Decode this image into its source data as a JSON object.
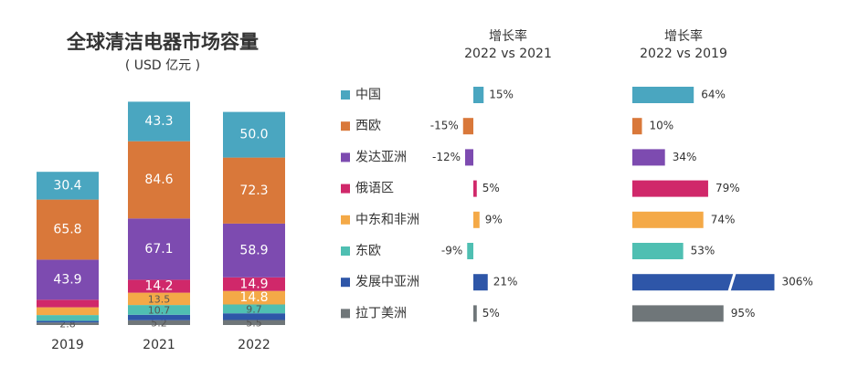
{
  "chart_data": [
    {
      "type": "stacked-bar",
      "title": "全球清洁电器市场容量",
      "subtitle": "( USD 亿元 )",
      "categories": [
        "2019",
        "2021",
        "2022"
      ],
      "series": [
        {
          "name": "中国",
          "color": "#4aa6c0",
          "values": [
            30.4,
            43.3,
            50.0
          ],
          "value_labels": [
            "30.4",
            "43.3",
            "50.0"
          ]
        },
        {
          "name": "西欧",
          "color": "#d9783a",
          "values": [
            65.8,
            84.6,
            72.3
          ],
          "value_labels": [
            "65.8",
            "84.6",
            "72.3"
          ]
        },
        {
          "name": "发达亚洲",
          "color": "#7d4bb0",
          "values": [
            43.9,
            67.1,
            58.9
          ],
          "value_labels": [
            "43.9",
            "67.1",
            "58.9"
          ]
        },
        {
          "name": "俄语区",
          "color": "#d0286a",
          "values": [
            8.3,
            14.2,
            14.9
          ],
          "value_labels": [
            null,
            "14.2",
            "14.9"
          ]
        },
        {
          "name": "中东和非洲",
          "color": "#f4a947",
          "values": [
            8.5,
            13.5,
            14.8
          ],
          "value_labels": [
            null,
            "13.5",
            "14.8"
          ]
        },
        {
          "name": "东欧",
          "color": "#4fbfb2",
          "values": [
            6.3,
            10.7,
            9.7
          ],
          "value_labels": [
            null,
            "10.7",
            "9.7"
          ]
        },
        {
          "name": "发展中亚洲",
          "color": "#2e56a8",
          "values": [
            1.8,
            6.0,
            7.3
          ],
          "value_labels": [
            null,
            null,
            null
          ]
        },
        {
          "name": "拉丁美洲",
          "color": "#6f7679",
          "values": [
            2.8,
            5.2,
            5.5
          ],
          "value_labels": [
            "2.8",
            "5.2",
            "5.5"
          ]
        }
      ]
    },
    {
      "type": "hbar",
      "title": "增长率",
      "subtitle": "2022 vs 2021",
      "values": [
        15,
        -15,
        -12,
        5,
        9,
        -9,
        21,
        5
      ],
      "value_labels": [
        "15%",
        "-15%",
        "-12%",
        "5%",
        "9%",
        "-9%",
        "21%",
        "5%"
      ]
    },
    {
      "type": "hbar-break",
      "title": "增长率",
      "subtitle": "2022 vs 2019",
      "values": [
        64,
        10,
        34,
        79,
        74,
        53,
        306,
        95
      ],
      "value_labels": [
        "64%",
        "10%",
        "34%",
        "79%",
        "74%",
        "53%",
        "306%",
        "95%"
      ]
    }
  ]
}
